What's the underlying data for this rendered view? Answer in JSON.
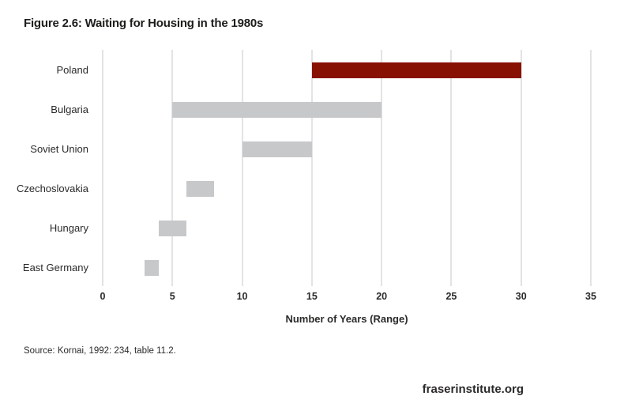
{
  "title": "Figure 2.6: Waiting for Housing in the 1980s",
  "source": "Source: Kornai, 1992: 234, table 11.2.",
  "footer_brand": "fraserinstitute.org",
  "colors": {
    "highlight_bar": "#871102",
    "default_bar": "#c7c8ca",
    "gridline": "#e2e3e5",
    "text": "#2b2a29"
  },
  "chart_data": {
    "type": "bar",
    "orientation": "horizontal",
    "variant": "range",
    "title": "Figure 2.6: Waiting for Housing in the 1980s",
    "categories": [
      "Poland",
      "Bulgaria",
      "Soviet Union",
      "Czechoslovakia",
      "Hungary",
      "East Germany"
    ],
    "ranges": [
      [
        15,
        30
      ],
      [
        5,
        20
      ],
      [
        10,
        15
      ],
      [
        6,
        8
      ],
      [
        4,
        6
      ],
      [
        3,
        4
      ]
    ],
    "bar_colors": [
      "#871102",
      "#c7c8ca",
      "#c7c8ca",
      "#c7c8ca",
      "#c7c8ca",
      "#c7c8ca"
    ],
    "xlabel": "Number of Years (Range)",
    "xlim": [
      0,
      35
    ],
    "xticks": [
      0,
      5,
      10,
      15,
      20,
      25,
      30,
      35
    ],
    "grid": "vertical",
    "legend": "none"
  }
}
